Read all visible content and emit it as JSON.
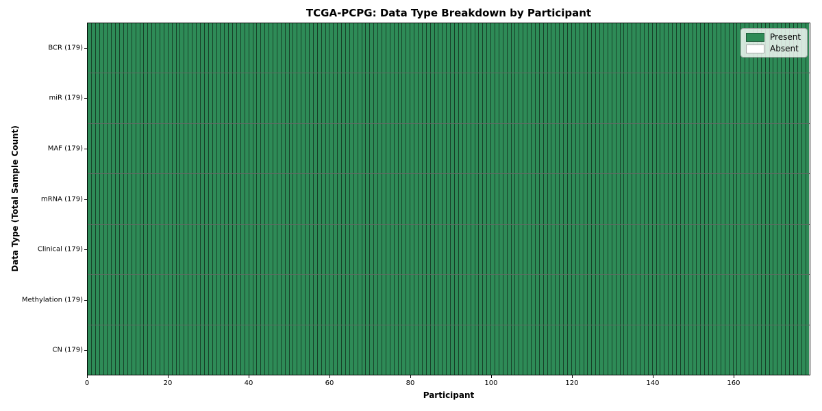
{
  "title": "TCGA-PCPG: Data Type Breakdown by Participant",
  "chart_data": {
    "type": "heatmap",
    "title": "TCGA-PCPG: Data Type Breakdown by Participant",
    "xlabel": "Participant",
    "ylabel": "Data Type (Total Sample Count)",
    "n_participants": 179,
    "x_range": [
      0,
      179
    ],
    "x_ticks": [
      0,
      20,
      40,
      60,
      80,
      100,
      120,
      140,
      160
    ],
    "rows": [
      {
        "data_type": "BCR",
        "tick_label": "BCR (179)",
        "total_samples": 179,
        "present_count": 179,
        "absent_count": 0
      },
      {
        "data_type": "miR",
        "tick_label": "miR (179)",
        "total_samples": 179,
        "present_count": 179,
        "absent_count": 0
      },
      {
        "data_type": "MAF",
        "tick_label": "MAF (179)",
        "total_samples": 179,
        "present_count": 179,
        "absent_count": 0
      },
      {
        "data_type": "mRNA",
        "tick_label": "mRNA (179)",
        "total_samples": 179,
        "present_count": 179,
        "absent_count": 0
      },
      {
        "data_type": "Clinical",
        "tick_label": "Clinical (179)",
        "total_samples": 179,
        "present_count": 179,
        "absent_count": 0
      },
      {
        "data_type": "Methylation",
        "tick_label": "Methylation (179)",
        "total_samples": 179,
        "present_count": 179,
        "absent_count": 0
      },
      {
        "data_type": "CN",
        "tick_label": "CN (179)",
        "total_samples": 179,
        "present_count": 179,
        "absent_count": 0
      }
    ],
    "legend": [
      {
        "label": "Present",
        "color": "#2e8b57"
      },
      {
        "label": "Absent",
        "color": "#ffffff"
      }
    ],
    "legend_position": "upper right",
    "grid": false,
    "colors": {
      "present": "#2e8b57",
      "absent": "#ffffff",
      "cell_edge": "rgba(10,25,16,0.65)",
      "spine": "#000000"
    }
  }
}
